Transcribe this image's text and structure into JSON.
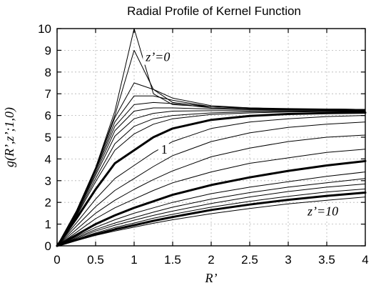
{
  "chart_data": {
    "type": "line",
    "title": "Radial Profile of Kernel Function",
    "xlabel": "R’",
    "ylabel": "g(R’,z’;1,0)",
    "xlim": [
      0,
      4
    ],
    "ylim": [
      0,
      10
    ],
    "x_ticks": [
      "0",
      "0.5",
      "1",
      "1.5",
      "2",
      "2.5",
      "3",
      "3.5",
      "4"
    ],
    "y_ticks": [
      "0",
      "1",
      "2",
      "3",
      "4",
      "5",
      "6",
      "7",
      "8",
      "9",
      "10"
    ],
    "grid": true,
    "x": [
      0,
      0.25,
      0.5,
      0.75,
      1,
      1.25,
      1.5,
      2,
      2.5,
      3,
      3.5,
      4
    ],
    "series": [
      {
        "label": "z'=0",
        "thick": false,
        "values": [
          0,
          1.6,
          3.6,
          6.2,
          10.0,
          7.0,
          6.5,
          6.4,
          6.35,
          6.32,
          6.3,
          6.28
        ]
      },
      {
        "thick": false,
        "values": [
          0,
          1.6,
          3.6,
          6.0,
          9.0,
          7.2,
          6.6,
          6.4,
          6.35,
          6.3,
          6.3,
          6.28
        ]
      },
      {
        "thick": false,
        "values": [
          0,
          1.6,
          3.55,
          5.9,
          7.5,
          7.2,
          6.8,
          6.45,
          6.35,
          6.3,
          6.3,
          6.28
        ]
      },
      {
        "thick": false,
        "values": [
          0,
          1.55,
          3.5,
          5.7,
          6.9,
          6.9,
          6.7,
          6.4,
          6.33,
          6.3,
          6.3,
          6.27
        ]
      },
      {
        "thick": false,
        "values": [
          0,
          1.5,
          3.45,
          5.5,
          6.5,
          6.6,
          6.55,
          6.35,
          6.3,
          6.28,
          6.27,
          6.26
        ]
      },
      {
        "thick": false,
        "values": [
          0,
          1.5,
          3.35,
          5.3,
          6.2,
          6.35,
          6.35,
          6.3,
          6.27,
          6.26,
          6.25,
          6.25
        ]
      },
      {
        "thick": false,
        "values": [
          0,
          1.45,
          3.25,
          5.05,
          5.85,
          6.1,
          6.2,
          6.22,
          6.22,
          6.22,
          6.22,
          6.22
        ]
      },
      {
        "thick": false,
        "values": [
          0,
          1.4,
          3.1,
          4.7,
          5.5,
          5.85,
          6.0,
          6.12,
          6.17,
          6.19,
          6.2,
          6.2
        ]
      },
      {
        "thick": false,
        "values": [
          0,
          1.35,
          2.95,
          4.4,
          5.15,
          5.6,
          5.85,
          6.05,
          6.12,
          6.16,
          6.18,
          6.18
        ]
      },
      {
        "label": "1",
        "thick": true,
        "values": [
          0,
          1.25,
          2.6,
          3.8,
          4.4,
          5.0,
          5.4,
          5.8,
          5.98,
          6.07,
          6.11,
          6.13
        ]
      },
      {
        "thick": false,
        "values": [
          0,
          1.05,
          2.15,
          3.1,
          3.7,
          4.3,
          4.8,
          5.4,
          5.7,
          5.85,
          5.95,
          6.0
        ]
      },
      {
        "thick": false,
        "values": [
          0,
          0.9,
          1.8,
          2.55,
          3.1,
          3.65,
          4.15,
          4.8,
          5.2,
          5.45,
          5.6,
          5.7
        ]
      },
      {
        "thick": false,
        "values": [
          0,
          0.75,
          1.5,
          2.1,
          2.6,
          3.05,
          3.45,
          4.1,
          4.5,
          4.8,
          5.0,
          5.1
        ]
      },
      {
        "thick": false,
        "values": [
          0,
          0.62,
          1.25,
          1.75,
          2.15,
          2.55,
          2.9,
          3.4,
          3.8,
          4.05,
          4.3,
          4.45
        ]
      },
      {
        "thick": true,
        "values": [
          0,
          0.5,
          1.0,
          1.4,
          1.75,
          2.05,
          2.35,
          2.8,
          3.15,
          3.45,
          3.7,
          3.9
        ]
      },
      {
        "thick": false,
        "values": [
          0,
          0.43,
          0.85,
          1.2,
          1.5,
          1.75,
          2.0,
          2.4,
          2.7,
          2.95,
          3.2,
          3.4
        ]
      },
      {
        "thick": false,
        "values": [
          0,
          0.38,
          0.75,
          1.05,
          1.3,
          1.55,
          1.78,
          2.15,
          2.45,
          2.7,
          2.9,
          3.1
        ]
      },
      {
        "thick": false,
        "values": [
          0,
          0.34,
          0.68,
          0.95,
          1.18,
          1.4,
          1.6,
          1.95,
          2.25,
          2.5,
          2.7,
          2.85
        ]
      },
      {
        "thick": false,
        "values": [
          0,
          0.3,
          0.6,
          0.85,
          1.05,
          1.27,
          1.45,
          1.78,
          2.05,
          2.28,
          2.48,
          2.62
        ]
      },
      {
        "thick": true,
        "values": [
          0,
          0.27,
          0.53,
          0.76,
          0.95,
          1.15,
          1.33,
          1.65,
          1.9,
          2.12,
          2.3,
          2.45
        ]
      },
      {
        "label": "z'=10",
        "thick": false,
        "values": [
          0,
          0.24,
          0.48,
          0.68,
          0.86,
          1.04,
          1.2,
          1.48,
          1.72,
          1.93,
          2.1,
          2.25
        ]
      }
    ],
    "annotations": [
      {
        "text": "z’=0",
        "x": 1.15,
        "y": 8.5
      },
      {
        "text": "1",
        "x": 1.35,
        "y": 4.25
      },
      {
        "text": "z’=10",
        "x": 3.25,
        "y": 1.4
      }
    ]
  }
}
